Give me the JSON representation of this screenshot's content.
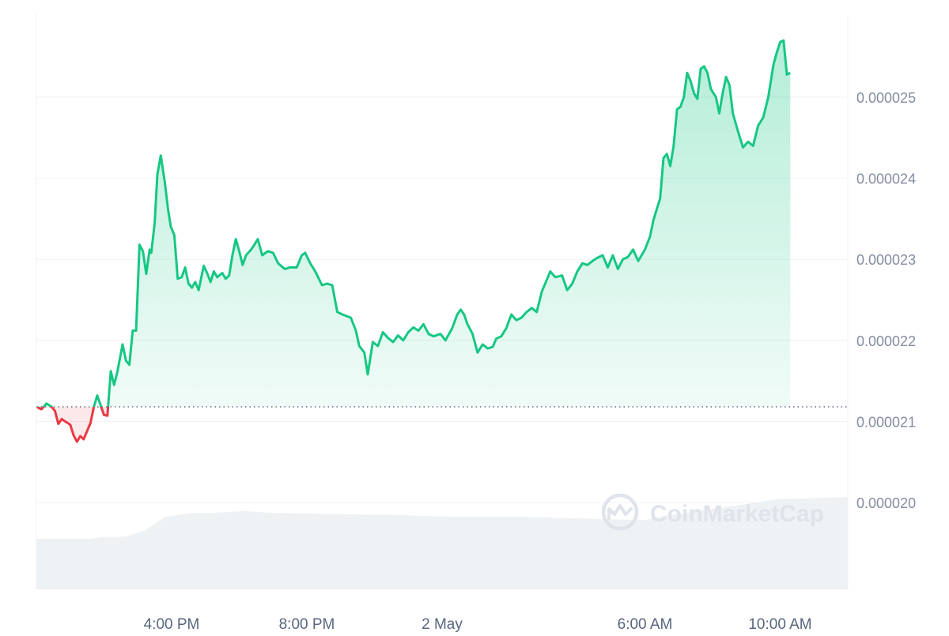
{
  "chart_data": {
    "type": "line",
    "title": "",
    "xlabel": "",
    "ylabel": "",
    "reference_price": 2.118e-05,
    "ylim": [
      1.9e-05,
      2.6e-05
    ],
    "y_ticks": [
      {
        "value": 2e-05,
        "label": "0.000020"
      },
      {
        "value": 2.1e-05,
        "label": "0.000021"
      },
      {
        "value": 2.2e-05,
        "label": "0.000022"
      },
      {
        "value": 2.3e-05,
        "label": "0.000023"
      },
      {
        "value": 2.4e-05,
        "label": "0.000024"
      },
      {
        "value": 2.5e-05,
        "label": "0.000025"
      }
    ],
    "x_ticks": [
      {
        "label": "4:00 PM",
        "hours": 4
      },
      {
        "label": "8:00 PM",
        "hours": 8
      },
      {
        "label": "2 May",
        "hours": 12
      },
      {
        "label": "6:00 AM",
        "hours": 18
      },
      {
        "label": "10:00 AM",
        "hours": 22
      }
    ],
    "x_range_hours": [
      0,
      24
    ],
    "colors": {
      "up": "#16c784",
      "down": "#ea3943",
      "volume": "#eff2f5"
    },
    "series": [
      {
        "values": [
          [
            0.0,
            2.118e-05
          ],
          [
            0.15,
            2.115e-05
          ],
          [
            0.3,
            2.122e-05
          ],
          [
            0.45,
            2.118e-05
          ],
          [
            0.55,
            2.113e-05
          ],
          [
            0.65,
            2.097e-05
          ],
          [
            0.75,
            2.103e-05
          ],
          [
            0.85,
            2.1e-05
          ],
          [
            1.0,
            2.096e-05
          ],
          [
            1.1,
            2.083e-05
          ],
          [
            1.2,
            2.075e-05
          ],
          [
            1.3,
            2.082e-05
          ],
          [
            1.4,
            2.078e-05
          ],
          [
            1.5,
            2.088e-05
          ],
          [
            1.6,
            2.098e-05
          ],
          [
            1.7,
            2.118e-05
          ],
          [
            1.8,
            2.132e-05
          ],
          [
            1.9,
            2.12e-05
          ],
          [
            2.0,
            2.108e-05
          ],
          [
            2.1,
            2.107e-05
          ],
          [
            2.2,
            2.162e-05
          ],
          [
            2.3,
            2.145e-05
          ],
          [
            2.4,
            2.162e-05
          ],
          [
            2.55,
            2.195e-05
          ],
          [
            2.65,
            2.175e-05
          ],
          [
            2.75,
            2.17e-05
          ],
          [
            2.85,
            2.212e-05
          ],
          [
            2.95,
            2.212e-05
          ],
          [
            3.05,
            2.318e-05
          ],
          [
            3.15,
            2.31e-05
          ],
          [
            3.25,
            2.282e-05
          ],
          [
            3.35,
            2.312e-05
          ],
          [
            3.4,
            2.308e-05
          ],
          [
            3.5,
            2.345e-05
          ],
          [
            3.58,
            2.405e-05
          ],
          [
            3.68,
            2.428e-05
          ],
          [
            3.8,
            2.395e-05
          ],
          [
            3.9,
            2.36e-05
          ],
          [
            3.98,
            2.34e-05
          ],
          [
            4.08,
            2.33e-05
          ],
          [
            4.18,
            2.276e-05
          ],
          [
            4.3,
            2.278e-05
          ],
          [
            4.4,
            2.29e-05
          ],
          [
            4.5,
            2.27e-05
          ],
          [
            4.6,
            2.265e-05
          ],
          [
            4.7,
            2.272e-05
          ],
          [
            4.8,
            2.262e-05
          ],
          [
            4.95,
            2.292e-05
          ],
          [
            5.05,
            2.283e-05
          ],
          [
            5.15,
            2.272e-05
          ],
          [
            5.25,
            2.285e-05
          ],
          [
            5.35,
            2.278e-05
          ],
          [
            5.5,
            2.283e-05
          ],
          [
            5.6,
            2.276e-05
          ],
          [
            5.7,
            2.28e-05
          ],
          [
            5.8,
            2.305e-05
          ],
          [
            5.9,
            2.325e-05
          ],
          [
            6.0,
            2.31e-05
          ],
          [
            6.1,
            2.293e-05
          ],
          [
            6.2,
            2.305e-05
          ],
          [
            6.35,
            2.312e-05
          ],
          [
            6.45,
            2.318e-05
          ],
          [
            6.55,
            2.325e-05
          ],
          [
            6.68,
            2.305e-05
          ],
          [
            6.85,
            2.31e-05
          ],
          [
            7.0,
            2.308e-05
          ],
          [
            7.15,
            2.295e-05
          ],
          [
            7.35,
            2.288e-05
          ],
          [
            7.5,
            2.29e-05
          ],
          [
            7.7,
            2.29e-05
          ],
          [
            7.85,
            2.305e-05
          ],
          [
            7.95,
            2.308e-05
          ],
          [
            8.1,
            2.295e-05
          ],
          [
            8.25,
            2.285e-05
          ],
          [
            8.45,
            2.268e-05
          ],
          [
            8.6,
            2.27e-05
          ],
          [
            8.75,
            2.268e-05
          ],
          [
            8.9,
            2.235e-05
          ],
          [
            9.05,
            2.232e-05
          ],
          [
            9.3,
            2.228e-05
          ],
          [
            9.45,
            2.212e-05
          ],
          [
            9.55,
            2.193e-05
          ],
          [
            9.7,
            2.185e-05
          ],
          [
            9.8,
            2.158e-05
          ],
          [
            9.95,
            2.198e-05
          ],
          [
            10.1,
            2.193e-05
          ],
          [
            10.25,
            2.21e-05
          ],
          [
            10.4,
            2.203e-05
          ],
          [
            10.55,
            2.198e-05
          ],
          [
            10.7,
            2.206e-05
          ],
          [
            10.85,
            2.2e-05
          ],
          [
            11.0,
            2.21e-05
          ],
          [
            11.15,
            2.216e-05
          ],
          [
            11.3,
            2.212e-05
          ],
          [
            11.45,
            2.22e-05
          ],
          [
            11.6,
            2.208e-05
          ],
          [
            11.75,
            2.205e-05
          ],
          [
            11.95,
            2.208e-05
          ],
          [
            12.1,
            2.2e-05
          ],
          [
            12.3,
            2.215e-05
          ],
          [
            12.45,
            2.232e-05
          ],
          [
            12.55,
            2.238e-05
          ],
          [
            12.65,
            2.232e-05
          ],
          [
            12.75,
            2.22e-05
          ],
          [
            12.9,
            2.208e-05
          ],
          [
            13.05,
            2.185e-05
          ],
          [
            13.2,
            2.195e-05
          ],
          [
            13.35,
            2.19e-05
          ],
          [
            13.5,
            2.192e-05
          ],
          [
            13.6,
            2.202e-05
          ],
          [
            13.75,
            2.205e-05
          ],
          [
            13.9,
            2.215e-05
          ],
          [
            14.05,
            2.232e-05
          ],
          [
            14.2,
            2.225e-05
          ],
          [
            14.35,
            2.228e-05
          ],
          [
            14.5,
            2.235e-05
          ],
          [
            14.65,
            2.24e-05
          ],
          [
            14.8,
            2.235e-05
          ],
          [
            14.95,
            2.26e-05
          ],
          [
            15.1,
            2.275e-05
          ],
          [
            15.2,
            2.285e-05
          ],
          [
            15.35,
            2.278e-05
          ],
          [
            15.55,
            2.28e-05
          ],
          [
            15.7,
            2.262e-05
          ],
          [
            15.85,
            2.27e-05
          ],
          [
            16.0,
            2.285e-05
          ],
          [
            16.15,
            2.295e-05
          ],
          [
            16.3,
            2.293e-05
          ],
          [
            16.45,
            2.298e-05
          ],
          [
            16.6,
            2.302e-05
          ],
          [
            16.75,
            2.305e-05
          ],
          [
            16.9,
            2.29e-05
          ],
          [
            17.05,
            2.305e-05
          ],
          [
            17.2,
            2.288e-05
          ],
          [
            17.35,
            2.3e-05
          ],
          [
            17.5,
            2.303e-05
          ],
          [
            17.65,
            2.312e-05
          ],
          [
            17.8,
            2.298e-05
          ],
          [
            18.0,
            2.312e-05
          ],
          [
            18.15,
            2.328e-05
          ],
          [
            18.25,
            2.348e-05
          ],
          [
            18.35,
            2.362e-05
          ],
          [
            18.45,
            2.375e-05
          ],
          [
            18.55,
            2.425e-05
          ],
          [
            18.65,
            2.43e-05
          ],
          [
            18.75,
            2.415e-05
          ],
          [
            18.85,
            2.44e-05
          ],
          [
            18.95,
            2.485e-05
          ],
          [
            19.05,
            2.488e-05
          ],
          [
            19.15,
            2.5e-05
          ],
          [
            19.25,
            2.53e-05
          ],
          [
            19.35,
            2.52e-05
          ],
          [
            19.45,
            2.505e-05
          ],
          [
            19.55,
            2.498e-05
          ],
          [
            19.65,
            2.535e-05
          ],
          [
            19.75,
            2.538e-05
          ],
          [
            19.85,
            2.53e-05
          ],
          [
            19.95,
            2.51e-05
          ],
          [
            20.1,
            2.5e-05
          ],
          [
            20.2,
            2.48e-05
          ],
          [
            20.3,
            2.505e-05
          ],
          [
            20.4,
            2.525e-05
          ],
          [
            20.5,
            2.515e-05
          ],
          [
            20.6,
            2.48e-05
          ],
          [
            20.75,
            2.458e-05
          ],
          [
            20.9,
            2.438e-05
          ],
          [
            21.05,
            2.445e-05
          ],
          [
            21.2,
            2.44e-05
          ],
          [
            21.35,
            2.465e-05
          ],
          [
            21.5,
            2.475e-05
          ],
          [
            21.65,
            2.5e-05
          ],
          [
            21.8,
            2.54e-05
          ],
          [
            21.9,
            2.555e-05
          ],
          [
            22.0,
            2.568e-05
          ],
          [
            22.1,
            2.57e-05
          ],
          [
            22.2,
            2.528e-05
          ],
          [
            22.3,
            2.53e-05
          ]
        ]
      }
    ],
    "volume": {
      "note": "relative volume level 0-1 of the volume area",
      "x_hours": [
        0,
        1.6,
        2.0,
        2.6,
        3.2,
        3.8,
        4.6,
        5.2,
        6.2,
        7.0,
        8.6,
        10.6,
        12.4,
        14.4,
        16.6,
        18.0,
        18.8,
        19.6,
        21.0,
        22.0,
        24.0
      ],
      "levels": [
        0.5,
        0.5,
        0.52,
        0.52,
        0.58,
        0.72,
        0.76,
        0.76,
        0.78,
        0.76,
        0.75,
        0.74,
        0.72,
        0.72,
        0.7,
        0.69,
        0.74,
        0.78,
        0.85,
        0.9,
        0.92
      ]
    }
  },
  "watermark": {
    "text": "CoinMarketCap",
    "icon": "coinmarketcap-logo-icon"
  }
}
